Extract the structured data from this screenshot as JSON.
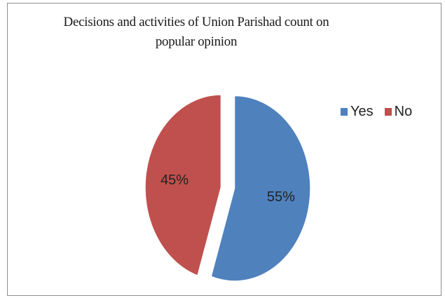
{
  "chart_data": {
    "type": "pie",
    "title": "Decisions and activities of Union Parishad count on popular opinion",
    "categories": [
      "Yes",
      "No"
    ],
    "values": [
      55,
      45
    ],
    "data_labels": [
      "55%",
      "45%"
    ],
    "colors": [
      "#4f81bd",
      "#c0504d"
    ],
    "legend_position": "right",
    "exploded": true
  }
}
